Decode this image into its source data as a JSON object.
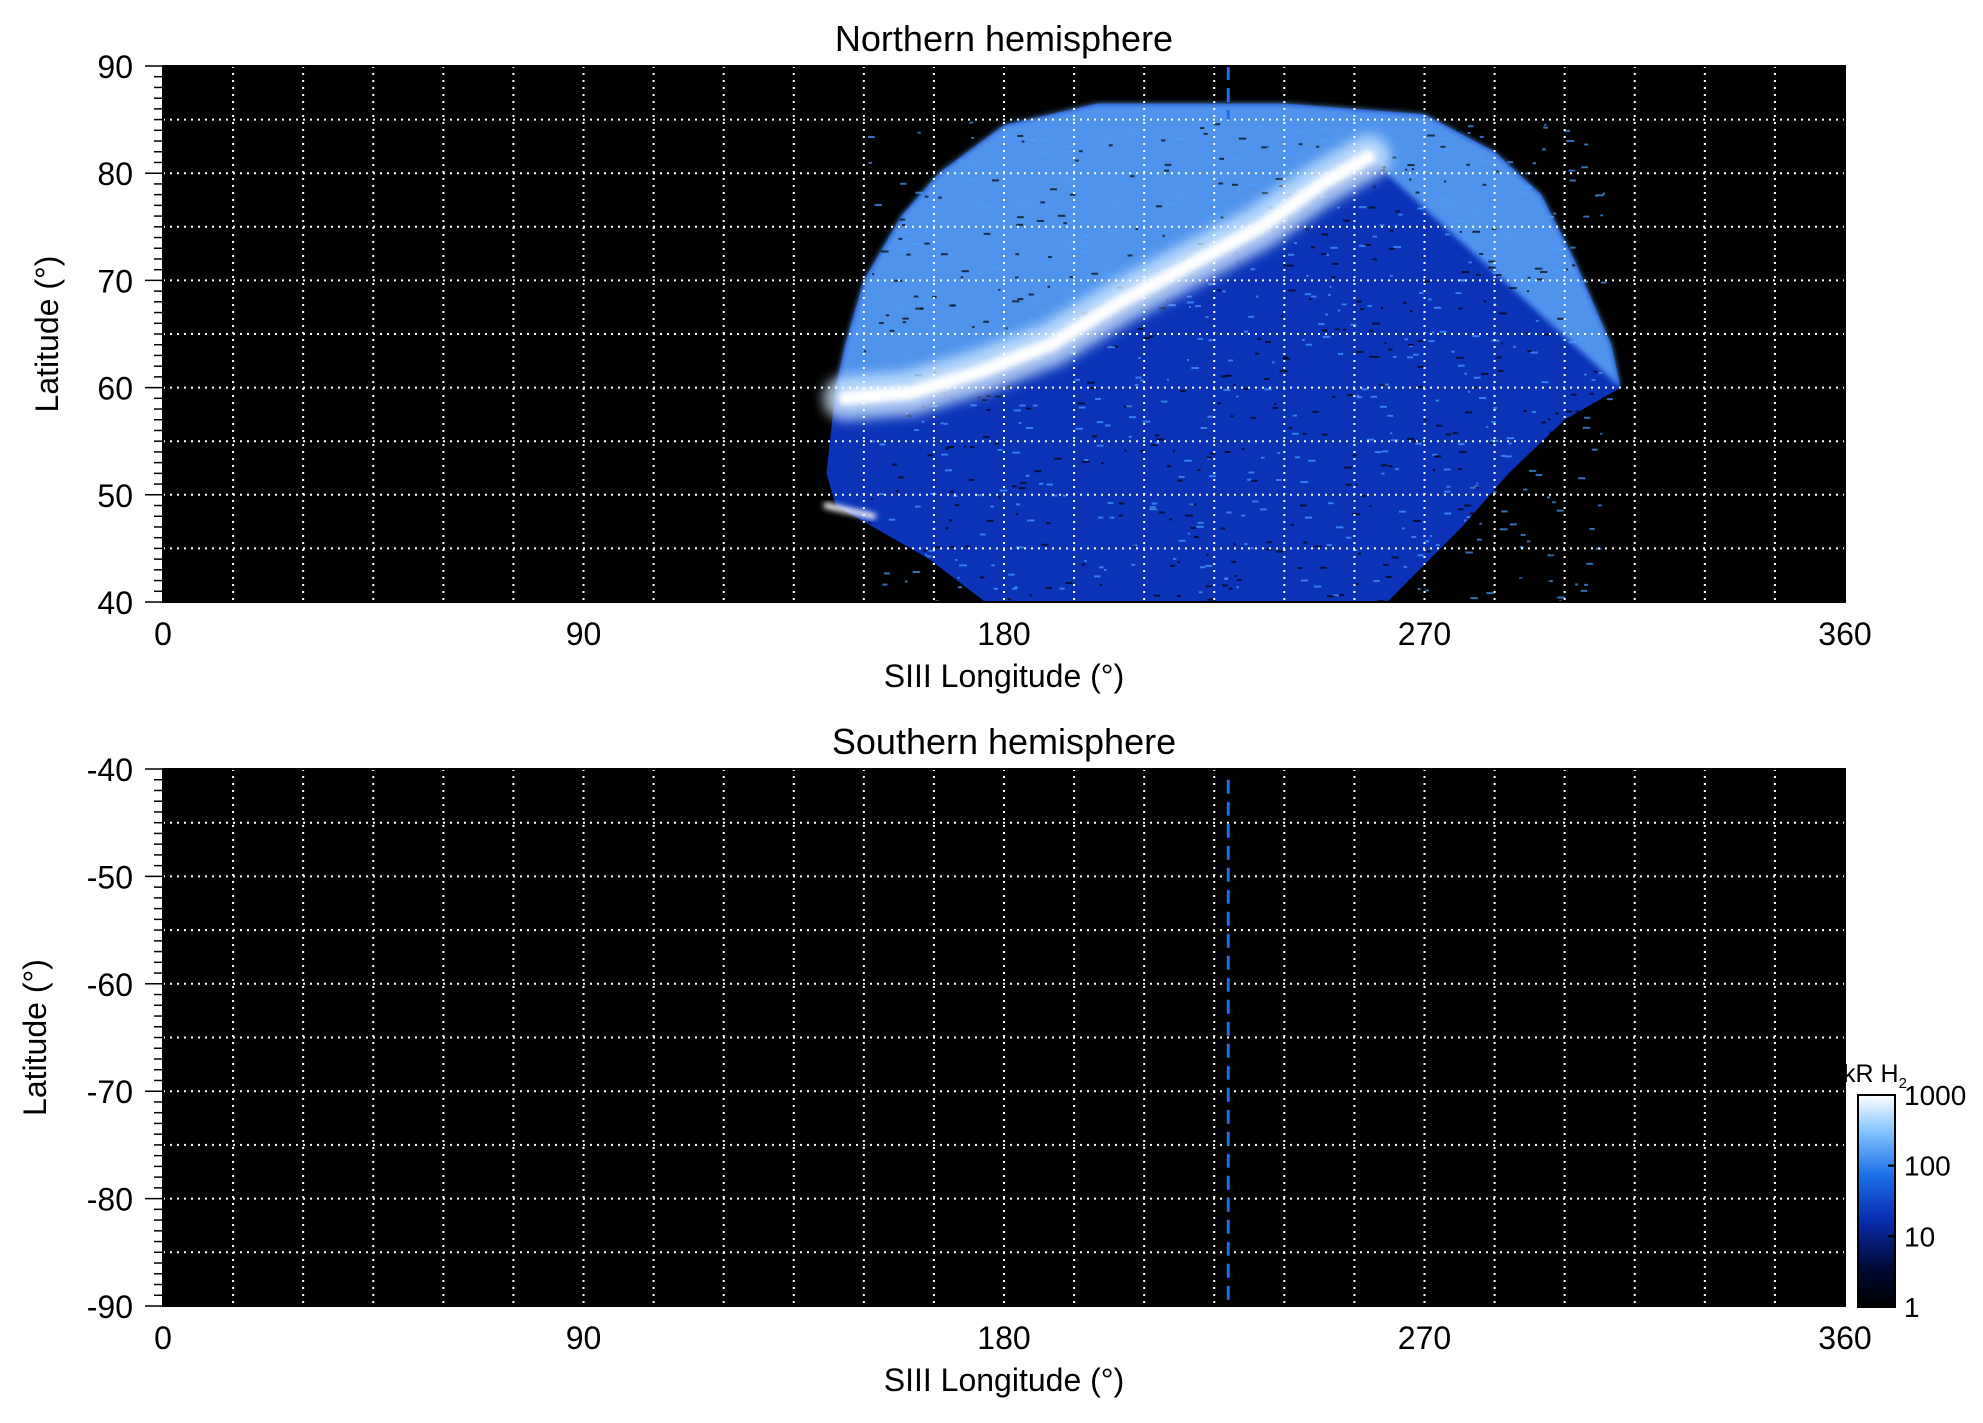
{
  "colorbar": {
    "label": "kR H",
    "label_subscript": "2",
    "ticks": [
      "1000",
      "100",
      "10",
      "1"
    ],
    "tick_values": [
      1000,
      100,
      10,
      1
    ],
    "scale": "log",
    "range": [
      1,
      1000
    ],
    "colors": [
      "#000000",
      "#000a3c",
      "#0a2fb4",
      "#1b6fe8",
      "#7fc0ff",
      "#ffffff"
    ]
  },
  "chart_data": [
    {
      "type": "heatmap",
      "title": "Northern hemisphere",
      "xlabel": "SIII Longitude (°)",
      "ylabel": "Latitude (°)",
      "xlim": [
        0,
        360
      ],
      "ylim": [
        40,
        90
      ],
      "xticks": [
        "0",
        "90",
        "180",
        "270",
        "360"
      ],
      "xtick_values": [
        0,
        90,
        180,
        270,
        360
      ],
      "yticks": [
        "40",
        "50",
        "60",
        "70",
        "80",
        "90"
      ],
      "ytick_values": [
        40,
        50,
        60,
        70,
        80,
        90
      ],
      "grid": true,
      "grid_x_step": 15,
      "grid_y_step": 5,
      "background": "#000000",
      "reference_line": {
        "x": 228,
        "ylim": [
          85,
          90
        ],
        "style": "dashed",
        "color": "#1b6fe8"
      },
      "coverage_region": {
        "boundary_lon_lat": [
          [
            144,
            60
          ],
          [
            146,
            64
          ],
          [
            150,
            70
          ],
          [
            158,
            76
          ],
          [
            166,
            80
          ],
          [
            180,
            84.5
          ],
          [
            200,
            86.5
          ],
          [
            240,
            86.5
          ],
          [
            270,
            85.5
          ],
          [
            285,
            82
          ],
          [
            295,
            78
          ],
          [
            302,
            72
          ],
          [
            310,
            64
          ],
          [
            312,
            60
          ],
          [
            300,
            57
          ],
          [
            288,
            52
          ],
          [
            278,
            47
          ],
          [
            262,
            40
          ],
          [
            176,
            40
          ],
          [
            164,
            44
          ],
          [
            152,
            47
          ],
          [
            144,
            49
          ],
          [
            142,
            52
          ]
        ],
        "diffuse_level_kR": 20,
        "polar_cap_level_kR": 180
      },
      "main_oval": {
        "lon_lat": [
          [
            146,
            59
          ],
          [
            160,
            59.5
          ],
          [
            175,
            61.5
          ],
          [
            190,
            64
          ],
          [
            205,
            68
          ],
          [
            220,
            71.5
          ],
          [
            235,
            75
          ],
          [
            248,
            79
          ],
          [
            258,
            81.5
          ]
        ],
        "peak_level_kR": 1000
      },
      "secondary_arc": {
        "lon_lat": [
          [
            142,
            49
          ],
          [
            152,
            48
          ]
        ],
        "peak_level_kR": 1000
      }
    },
    {
      "type": "heatmap",
      "title": "Southern hemisphere",
      "xlabel": "SIII Longitude (°)",
      "ylabel": "Latitude (°)",
      "xlim": [
        0,
        360
      ],
      "ylim": [
        -90,
        -40
      ],
      "xticks": [
        "0",
        "90",
        "180",
        "270",
        "360"
      ],
      "xtick_values": [
        0,
        90,
        180,
        270,
        360
      ],
      "yticks": [
        "-40",
        "-50",
        "-60",
        "-70",
        "-80",
        "-90"
      ],
      "ytick_values": [
        -40,
        -50,
        -60,
        -70,
        -80,
        -90
      ],
      "grid": true,
      "grid_x_step": 15,
      "grid_y_step": 5,
      "background": "#000000",
      "reference_line": {
        "x": 228,
        "ylim": [
          -90,
          -41
        ],
        "style": "dashed",
        "color": "#1b6fe8"
      },
      "coverage_region": null
    }
  ]
}
